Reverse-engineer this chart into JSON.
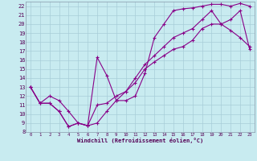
{
  "xlabel": "Windchill (Refroidissement éolien,°C)",
  "bg_color": "#c8ebf0",
  "grid_color": "#a8cdd8",
  "line_color": "#880088",
  "xlim": [
    -0.5,
    23.5
  ],
  "ylim": [
    8,
    22.5
  ],
  "yticks": [
    8,
    9,
    10,
    11,
    12,
    13,
    14,
    15,
    16,
    17,
    18,
    19,
    20,
    21,
    22
  ],
  "xticks": [
    0,
    1,
    2,
    3,
    4,
    5,
    6,
    7,
    8,
    9,
    10,
    11,
    12,
    13,
    14,
    15,
    16,
    17,
    18,
    19,
    20,
    21,
    22,
    23
  ],
  "line1_x": [
    0,
    1,
    2,
    3,
    4,
    5,
    6,
    7,
    8,
    9,
    10,
    11,
    12,
    13,
    14,
    15,
    16,
    17,
    18,
    19,
    20,
    21,
    22,
    23
  ],
  "line1_y": [
    13,
    11.2,
    11.2,
    10.3,
    8.6,
    9.0,
    8.7,
    11.0,
    11.2,
    12.0,
    12.5,
    13.5,
    15.0,
    15.8,
    16.5,
    17.2,
    17.5,
    18.2,
    19.5,
    20.0,
    20.0,
    20.5,
    21.5,
    17.2
  ],
  "line2_x": [
    0,
    1,
    2,
    3,
    4,
    5,
    6,
    7,
    8,
    9,
    10,
    11,
    12,
    13,
    14,
    15,
    16,
    17,
    18,
    19,
    20,
    21,
    22,
    23
  ],
  "line2_y": [
    13.0,
    11.2,
    11.2,
    10.3,
    8.6,
    9.0,
    8.7,
    16.3,
    14.3,
    11.5,
    11.5,
    12.0,
    14.5,
    18.5,
    20.0,
    21.5,
    21.7,
    21.8,
    22.0,
    22.2,
    22.2,
    22.0,
    22.3,
    22.0
  ],
  "line3_x": [
    0,
    1,
    2,
    3,
    4,
    5,
    6,
    7,
    8,
    9,
    10,
    11,
    12,
    13,
    14,
    15,
    16,
    17,
    18,
    19,
    20,
    21,
    22,
    23
  ],
  "line3_y": [
    13.0,
    11.2,
    12.0,
    11.5,
    10.3,
    9.0,
    8.7,
    9.0,
    10.3,
    11.5,
    12.5,
    14.0,
    15.5,
    16.5,
    17.5,
    18.5,
    19.0,
    19.5,
    20.5,
    21.5,
    20.0,
    19.3,
    18.5,
    17.5
  ]
}
